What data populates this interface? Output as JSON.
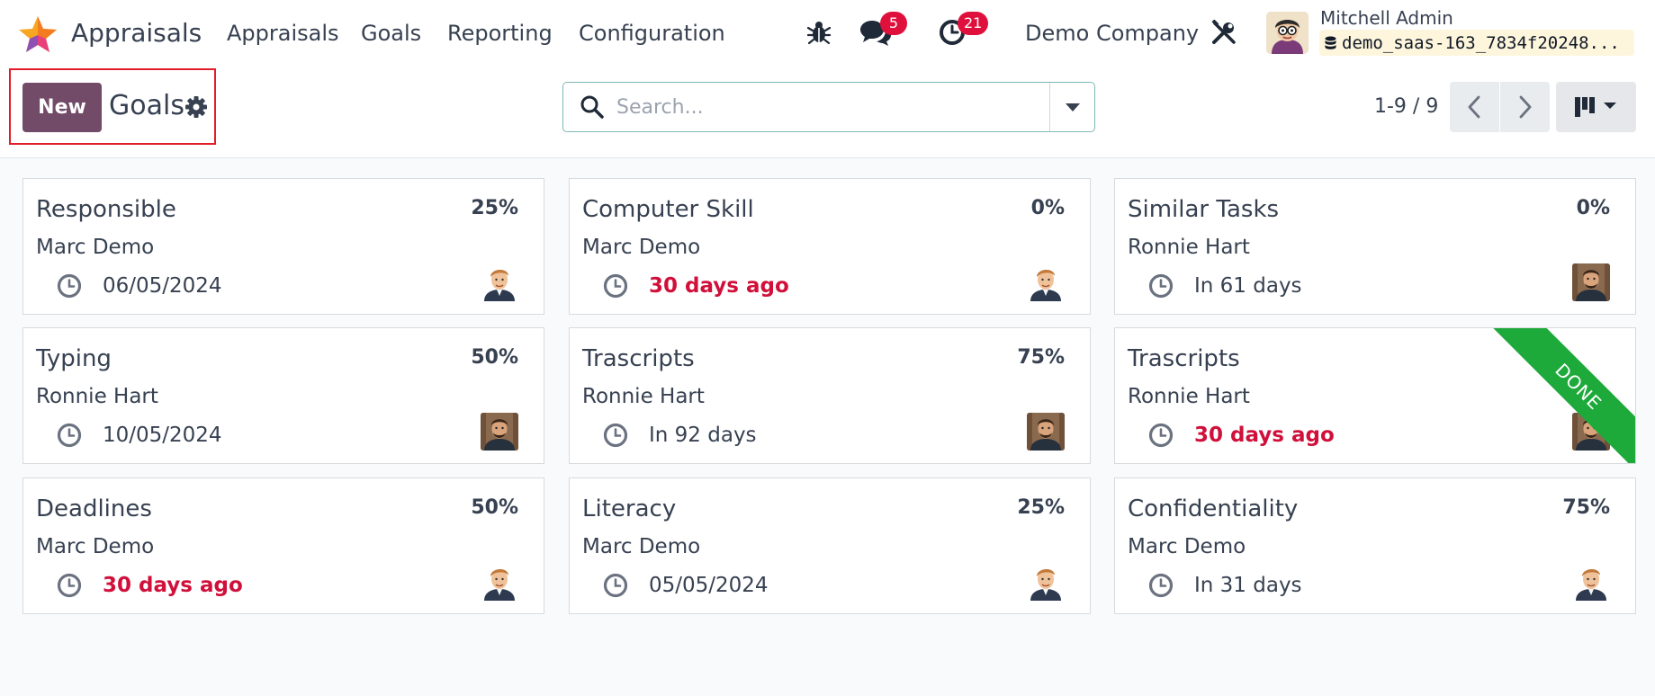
{
  "navbar": {
    "app_title": "Appraisals",
    "menu": [
      "Appraisals",
      "Goals",
      "Reporting",
      "Configuration"
    ],
    "messages_count": "5",
    "activities_count": "21",
    "company": "Demo Company",
    "user_name": "Mitchell Admin",
    "database": "demo_saas-163_7834f20248..."
  },
  "control": {
    "new_label": "New",
    "title": "Goals",
    "search_placeholder": "Search...",
    "pager": "1-9 / 9"
  },
  "goals": [
    {
      "title": "Responsible",
      "progress": "25%",
      "employee": "Marc Demo",
      "deadline": "06/05/2024",
      "overdue": false,
      "done": false,
      "avatar": "marc"
    },
    {
      "title": "Computer Skill",
      "progress": "0%",
      "employee": "Marc Demo",
      "deadline": "30 days ago",
      "overdue": true,
      "done": false,
      "avatar": "marc"
    },
    {
      "title": "Similar Tasks",
      "progress": "0%",
      "employee": "Ronnie Hart",
      "deadline": "In 61 days",
      "overdue": false,
      "done": false,
      "avatar": "ronnie"
    },
    {
      "title": "Typing",
      "progress": "50%",
      "employee": "Ronnie Hart",
      "deadline": "10/05/2024",
      "overdue": false,
      "done": false,
      "avatar": "ronnie"
    },
    {
      "title": "Trascripts",
      "progress": "75%",
      "employee": "Ronnie Hart",
      "deadline": "In 92 days",
      "overdue": false,
      "done": false,
      "avatar": "ronnie"
    },
    {
      "title": "Trascripts",
      "progress": "",
      "employee": "Ronnie Hart",
      "deadline": "30 days ago",
      "overdue": true,
      "done": true,
      "ribbon": "DONE",
      "avatar": "ronnie"
    },
    {
      "title": "Deadlines",
      "progress": "50%",
      "employee": "Marc Demo",
      "deadline": "30 days ago",
      "overdue": true,
      "done": false,
      "avatar": "marc"
    },
    {
      "title": "Literacy",
      "progress": "25%",
      "employee": "Marc Demo",
      "deadline": "05/05/2024",
      "overdue": false,
      "done": false,
      "avatar": "marc"
    },
    {
      "title": "Confidentiality",
      "progress": "75%",
      "employee": "Marc Demo",
      "deadline": "In 31 days",
      "overdue": false,
      "done": false,
      "avatar": "marc"
    }
  ],
  "colors": {
    "brand": "#714b67",
    "badge": "#e0103c",
    "overdue": "#d0103a",
    "done_ribbon": "#1ea93b",
    "highlight_box": "#e11d2a"
  },
  "icons": [
    "app-logo-icon",
    "bug-icon",
    "chat-icon",
    "clock-icon",
    "tools-icon",
    "database-icon",
    "gear-icon",
    "search-icon",
    "caret-down-icon",
    "chevron-left-icon",
    "chevron-right-icon",
    "kanban-view-icon"
  ]
}
